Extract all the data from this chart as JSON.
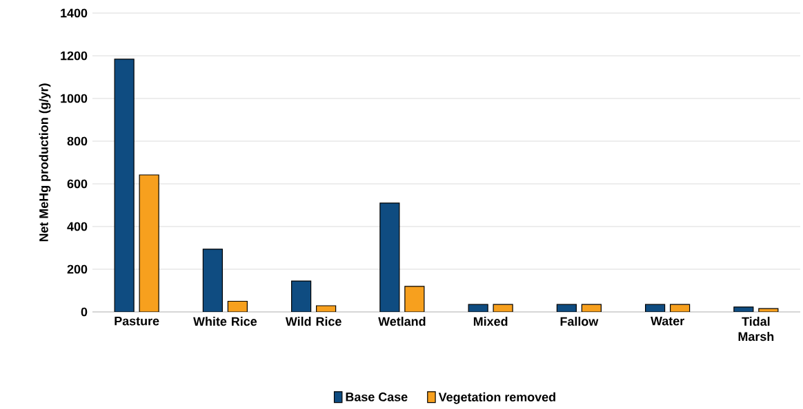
{
  "chart_data": {
    "type": "bar",
    "ylabel": "Net MeHg production (g/yr)",
    "categories": [
      "Pasture",
      "White Rice",
      "Wild Rice",
      "Wetland",
      "Mixed",
      "Fallow",
      "Water",
      "Tidal Marsh"
    ],
    "series": [
      {
        "name": "Base Case",
        "color": "#0f4c81",
        "values": [
          1184,
          294,
          145,
          510,
          35,
          35,
          35,
          23
        ]
      },
      {
        "name": "Vegetation removed",
        "color": "#f7a01e",
        "values": [
          642,
          50,
          29,
          120,
          35,
          35,
          35,
          16
        ]
      }
    ],
    "ylim": [
      0,
      1400
    ],
    "yticks": [
      0,
      200,
      400,
      600,
      800,
      1000,
      1200,
      1400
    ],
    "grid": "y",
    "legend": "bottom"
  }
}
